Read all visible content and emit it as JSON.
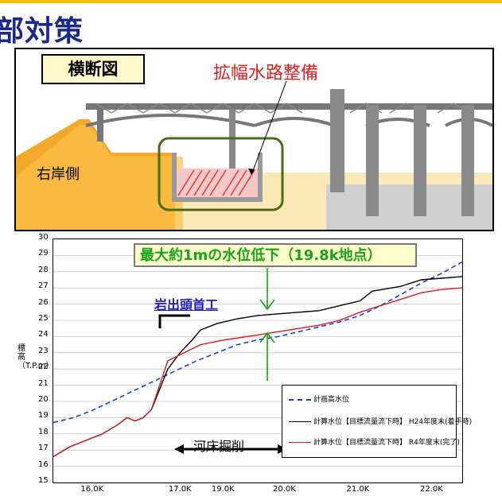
{
  "header": {
    "title": "部対策"
  },
  "cross_section": {
    "tag": "横断図",
    "title": "拡幅水路整備",
    "right_bank_label": "右岸側"
  },
  "chart_data": {
    "type": "line",
    "y_label": "標高（T.P.m）",
    "ylim": [
      15,
      30
    ],
    "y_ticks": [
      15,
      16,
      17,
      18,
      19,
      20,
      21,
      22,
      23,
      24,
      25,
      26,
      27,
      28,
      29,
      30
    ],
    "x_ticks": [
      "16.0K",
      "17.0K",
      "19.0K",
      "20.0K",
      "21.0K",
      "22.0K"
    ],
    "series": [
      {
        "name": "計画高水位",
        "color": "#1f3fd2",
        "style": "dashed",
        "points": [
          [
            0,
            18.7
          ],
          [
            0.05,
            19.0
          ],
          [
            0.1,
            19.5
          ],
          [
            0.15,
            20.1
          ],
          [
            0.2,
            20.7
          ],
          [
            0.25,
            21.3
          ],
          [
            0.3,
            21.9
          ],
          [
            0.35,
            22.5
          ],
          [
            0.4,
            23.0
          ],
          [
            0.45,
            23.5
          ],
          [
            0.5,
            23.8
          ],
          [
            0.55,
            24.0
          ],
          [
            0.6,
            24.3
          ],
          [
            0.65,
            24.6
          ],
          [
            0.7,
            24.9
          ],
          [
            0.75,
            25.3
          ],
          [
            0.8,
            25.9
          ],
          [
            0.85,
            26.6
          ],
          [
            0.9,
            27.3
          ],
          [
            0.95,
            27.9
          ],
          [
            1,
            28.6
          ]
        ]
      },
      {
        "name": "計算水位【目標流量流下時】 H24年度末(着手時)",
        "color": "#000000",
        "style": "solid",
        "points": [
          [
            0,
            16.6
          ],
          [
            0.04,
            17.2
          ],
          [
            0.08,
            17.6
          ],
          [
            0.12,
            18.0
          ],
          [
            0.16,
            18.6
          ],
          [
            0.18,
            19.0
          ],
          [
            0.2,
            18.8
          ],
          [
            0.22,
            19.0
          ],
          [
            0.24,
            19.5
          ],
          [
            0.28,
            22.0
          ],
          [
            0.31,
            23.0
          ],
          [
            0.34,
            23.8
          ],
          [
            0.36,
            24.4
          ],
          [
            0.4,
            24.8
          ],
          [
            0.45,
            25.1
          ],
          [
            0.5,
            25.3
          ],
          [
            0.55,
            25.4
          ],
          [
            0.6,
            25.5
          ],
          [
            0.65,
            25.6
          ],
          [
            0.7,
            25.9
          ],
          [
            0.75,
            26.2
          ],
          [
            0.78,
            26.8
          ],
          [
            0.85,
            27.1
          ],
          [
            0.9,
            27.5
          ],
          [
            0.95,
            27.6
          ],
          [
            1,
            27.7
          ]
        ]
      },
      {
        "name": "計算水位【目標流量流下時】 R4年度末(完了)",
        "color": "#d21f1f",
        "style": "solid",
        "points": [
          [
            0,
            16.6
          ],
          [
            0.04,
            17.2
          ],
          [
            0.08,
            17.6
          ],
          [
            0.12,
            18.0
          ],
          [
            0.16,
            18.6
          ],
          [
            0.18,
            19.0
          ],
          [
            0.2,
            18.8
          ],
          [
            0.22,
            19.0
          ],
          [
            0.24,
            19.5
          ],
          [
            0.28,
            22.5
          ],
          [
            0.32,
            23.0
          ],
          [
            0.36,
            23.5
          ],
          [
            0.42,
            23.8
          ],
          [
            0.5,
            24.1
          ],
          [
            0.55,
            24.3
          ],
          [
            0.6,
            24.5
          ],
          [
            0.65,
            24.7
          ],
          [
            0.7,
            25.0
          ],
          [
            0.75,
            25.5
          ],
          [
            0.8,
            25.9
          ],
          [
            0.85,
            26.3
          ],
          [
            0.9,
            26.7
          ],
          [
            0.95,
            26.9
          ],
          [
            1,
            27.0
          ]
        ]
      }
    ],
    "annotations": {
      "callout": "最大約1mの水位低下（19.8k地点）",
      "weir": "岩出頭首工",
      "dredge": "河床掘削"
    }
  }
}
